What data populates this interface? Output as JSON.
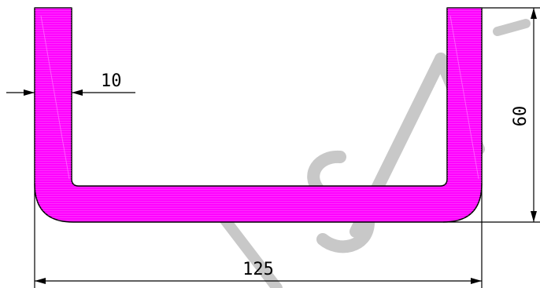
{
  "colors": {
    "profile_fill": "#ff00ff",
    "line": "#000000",
    "watermark": "#c8c8c8",
    "background": "#ffffff"
  },
  "dimensions": {
    "thickness": "10",
    "height": "60",
    "width": "125"
  }
}
